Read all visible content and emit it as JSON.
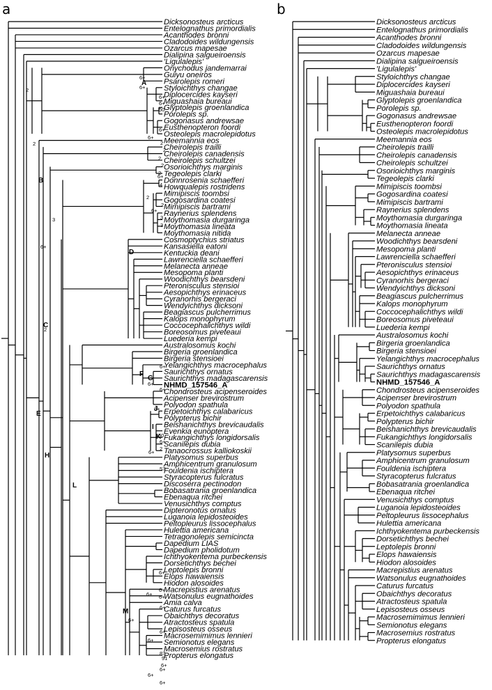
{
  "figure": {
    "panels": [
      {
        "label": "a",
        "taxa": [
          "Dicksonosteus arcticus",
          "Entelognathus primordialis",
          "Acanthodes bronni",
          "Cladodoides wildungensis",
          "Ozarcus mapesae",
          "Dialipina salgueiroensis",
          "'Ligulalepis'",
          "Onychodus jandemarrai",
          "Guiyu oneiros",
          "Psarolepis romeri",
          "Styloichthys changae",
          "Diplocercides kayseri",
          "Miguashaia bureaui",
          "Glyptolepis groenlandica",
          "Porolepis sp.",
          "Gogonasus andrewsae",
          "Eusthenopteron foordi",
          "Osteolepis macrolepidotus",
          "Meemannia eos",
          "Cheirolepis trailli",
          "Cheirolepis canadensis",
          "Cheirolepis schultzei",
          "Osorioichthys marginis",
          "Tegeolepis clarki",
          "Donnrosenia schaefferi",
          "Howqualepis rostridens",
          "Mimipiscis toombsi",
          "Gogosardina coatesi",
          "Mimipiscis bartrami",
          "Raynerius splendens",
          "Moythomasia durgaringa",
          "Moythomasia lineata",
          "Moythomasia nitida",
          "Cosmoptychius striatus",
          "Kansasiella eatoni",
          "Kentuckia deani",
          "Lawrenciella schaefferi",
          "Melanecta anneae",
          "Mesopoma planti",
          "Woodichthys bearsdeni",
          "Pteronisculus stensioi",
          "Aesopichthys erinaceus",
          "Cyranorhis bergeraci",
          "Wendyichthys dicksoni",
          "Beagiascus pulcherrimus",
          "Kalops monophyrum",
          "Coccocephalichthys wildi",
          "Boreosomus piveteaui",
          "Luederia kempi",
          "Australosomus kochi",
          "Birgeria groenlandica",
          "Birgeria stensioei",
          "Yelangichthys macrocephalus",
          "Saurichthys ornatus",
          "Saurichthys madagascarensis",
          "NHMD_157546_A",
          "Chondrosteus acipenseroides",
          "Acipenser brevirostrum",
          "Polyodon spathula",
          "Erpetoichthys calabaricus",
          "Polypterus bichir",
          "Beishanichthys brevicaudalis",
          "Evenkia eunoptera",
          "Fukangichthys longidorsalis",
          "Scanilepis dubia",
          "Tanaocrossus kalliokoskii",
          "Platysomus superbus",
          "Amphicentrum granulosum",
          "Fouldenia ischiptera",
          "Styracopterus fulcratus",
          "Discoserra pectinodon",
          "Bobasatrania groenlandica",
          "Ebenaqua ritchei",
          "Venusichthys comptus",
          "Dipteronotus ornatus",
          "Luganoia lepidosteoides",
          "Peltopleurus lissocephalus",
          "Hulettia americana",
          "Tetragonolepis semicincta",
          "Dapedium LIAS",
          "Dapedium pholidotum",
          "Ichthyokentema purbeckensis",
          "Dorsetichthys bechei",
          "Leptolepis bronni",
          "Elops hawaiensis",
          "Hiodon alosoides",
          "Macrepistius arenatus",
          "Watsonulus eugnathoides",
          "Amia calva",
          "Caturus furcatus",
          "Obaichthys decoratus",
          "Atractosteus spatula",
          "Lepisosteus osseus",
          "Macrosemimimus lennieri",
          "Semionotus elegans",
          "Macrosemius rostratus",
          "Propterus elongatus"
        ],
        "highlight": "NHMD_157546_A",
        "node_letters": [
          "A",
          "B",
          "C",
          "D",
          "E",
          "F",
          "G",
          "H",
          "I",
          "J",
          "K",
          "L",
          "M"
        ],
        "support_labels": [
          "2",
          "2",
          "6+",
          "6+",
          "6+",
          "6+",
          "50",
          "6+",
          "6+",
          "2",
          "2",
          "2",
          "2",
          "2",
          "2",
          "6+",
          "4",
          "2",
          "6+",
          "3",
          "3",
          "3",
          "6+",
          "2",
          "6+",
          "6+",
          "6+",
          "6+",
          "50",
          "6+",
          "2",
          "6+",
          "57",
          "6+",
          "6+",
          "6+",
          "6+",
          "6+",
          "6+",
          "6+",
          "6+",
          "87",
          "91",
          "6+",
          "6+",
          "6+",
          "6+"
        ]
      },
      {
        "label": "b",
        "taxa": [
          "Dicksonosteus arcticus",
          "Entelognathus primordialis",
          "Acanthodes bronni",
          "Cladodoides wildungensis",
          "Ozarcus mapesae",
          "Dialipina salgueiroensis",
          "'Ligulalepis'",
          "Styloichthys changae",
          "Diplocercides kayseri",
          "Miguashaia bureaui",
          "Glyptolepis groenlandica",
          "Porolepis sp.",
          "Gogonasus andrewsae",
          "Eusthenopteron foordi",
          "Osteolepis macrolepidotus",
          "Meemannia eos",
          "Cheirolepis trailli",
          "Cheirolepis canadensis",
          "Cheirolepis schultzei",
          "Osorioichthys marginis",
          "Tegeolepis clarki",
          "Mimipiscis toombsi",
          "Gogosardina coatesi",
          "Mimipiscis bartrami",
          "Raynerius splendens",
          "Moythomasia durgaringa",
          "Moythomasia lineata",
          "Melanecta anneae",
          "Woodichthys bearsdeni",
          "Mesopoma planti",
          "Lawrenciella schaefferi",
          "Pteronisculus stensioi",
          "Aesopichthys erinaceus",
          "Cyranorhis bergeraci",
          "Wendyichthys dicksoni",
          "Beagiascus pulcherrimus",
          "Kalops monophyrum",
          "Coccocephalichthys wildi",
          "Boreosomus piveteaui",
          "Luederia kempi",
          "Australosomus kochi",
          "Birgeria groenlandica",
          "Birgeria stensioei",
          "Yelangichthys macrocephalus",
          "Saurichthys ornatus",
          "Saurichthys madagascarensis",
          "NHMD_157546_A",
          "Chondrosteus acipenseroides",
          "Acipenser brevirostrum",
          "Polyodon spathula",
          "Erpetoichthys calabaricus",
          "Polypterus bichir",
          "Beishanichthys brevicaudalis",
          "Fukangichthys longidorsalis",
          "Scanilepis dubia",
          "Platysomus superbus",
          "Amphicentrum granulosum",
          "Fouldenia ischiptera",
          "Styracopterus fulcratus",
          "Bobasatrania groenlandica",
          "Ebenaqua ritchei",
          "Venusichthys comptus",
          "Luganoia lepidosteoides",
          "Peltopleurus lissocephalus",
          "Hulettia americana",
          "Ichthyokentema purbeckensis",
          "Dorsetichthys bechei",
          "Leptolepis bronni",
          "Elops hawaiensis",
          "Hiodon alosoides",
          "Macrepistius arenatus",
          "Watsonulus eugnathoides",
          "Caturus furcatus",
          "Obaichthys decoratus",
          "Atractosteus spatula",
          "Lepisosteus osseus",
          "Macrosemimimus lennieri",
          "Semionotus elegans",
          "Macrosemius rostratus",
          "Propterus elongatus"
        ],
        "highlight": "NHMD_157546_A"
      }
    ]
  }
}
